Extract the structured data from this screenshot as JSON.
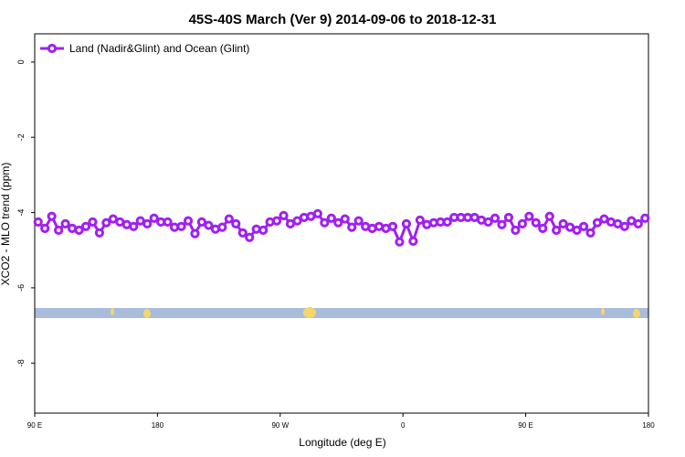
{
  "chart_data": {
    "type": "line",
    "title": "45S-40S March (Ver 9)   2014-09-06 to 2018-12-31",
    "x_label": "Longitude (deg E)",
    "y_label": "XCO2 - MLO trend (ppm)",
    "xlim": [
      90,
      540
    ],
    "ylim": [
      -9.33,
      0.75
    ],
    "xticks": [
      {
        "value": 90,
        "label": "90 E"
      },
      {
        "value": 180,
        "label": "180"
      },
      {
        "value": 270,
        "label": "90 W"
      },
      {
        "value": 360,
        "label": "0"
      },
      {
        "value": 450,
        "label": "90 E"
      },
      {
        "value": 540,
        "label": "180"
      }
    ],
    "yticks": [
      0,
      -2,
      -4,
      -6,
      -8
    ],
    "legend": "top-left",
    "x": [
      92.5,
      97.5,
      102.5,
      107.5,
      112.5,
      117.5,
      122.5,
      127.5,
      132.5,
      137.5,
      142.5,
      147.5,
      152.5,
      157.5,
      162.5,
      167.5,
      172.5,
      177.5,
      182.5,
      187.5,
      192.5,
      197.5,
      202.5,
      207.5,
      212.5,
      217.5,
      222.5,
      227.5,
      232.5,
      237.5,
      242.5,
      247.5,
      252.5,
      257.5,
      262.5,
      267.5,
      272.5,
      277.5,
      282.5,
      287.5,
      292.5,
      297.5,
      302.5,
      307.5,
      312.5,
      317.5,
      322.5,
      327.5,
      332.5,
      337.5,
      342.5,
      347.5,
      352.5,
      357.5,
      362.5,
      367.5,
      372.5,
      377.5,
      382.5,
      387.5,
      392.5,
      397.5,
      402.5,
      407.5,
      412.5,
      417.5,
      422.5,
      427.5,
      432.5,
      437.5,
      442.5,
      447.5,
      452.5,
      457.5,
      462.5,
      467.5,
      472.5,
      477.5,
      482.5,
      487.5,
      492.5,
      497.5,
      502.5,
      507.5,
      512.5,
      517.5,
      522.5,
      527.5,
      532.5,
      537.5
    ],
    "series": [
      {
        "name": "Land (Nadir&Glint) and Ocean (Glint)",
        "color": "#a020f0",
        "values": [
          -4.25,
          -4.42,
          -4.1,
          -4.47,
          -4.3,
          -4.42,
          -4.47,
          -4.37,
          -4.25,
          -4.54,
          -4.27,
          -4.17,
          -4.25,
          -4.32,
          -4.37,
          -4.22,
          -4.3,
          -4.15,
          -4.25,
          -4.25,
          -4.39,
          -4.37,
          -4.22,
          -4.56,
          -4.25,
          -4.34,
          -4.44,
          -4.39,
          -4.17,
          -4.3,
          -4.54,
          -4.66,
          -4.44,
          -4.47,
          -4.25,
          -4.22,
          -4.08,
          -4.3,
          -4.22,
          -4.13,
          -4.1,
          -4.03,
          -4.27,
          -4.15,
          -4.27,
          -4.17,
          -4.39,
          -4.22,
          -4.37,
          -4.42,
          -4.37,
          -4.42,
          -4.37,
          -4.78,
          -4.3,
          -4.76,
          -4.2,
          -4.32,
          -4.27,
          -4.25,
          -4.25,
          -4.13,
          -4.13,
          -4.13,
          -4.13,
          -4.2,
          -4.25,
          -4.15,
          -4.32,
          -4.13,
          -4.47,
          -4.3,
          -4.1,
          -4.27,
          -4.42,
          -4.1,
          -4.47,
          -4.3,
          -4.39,
          -4.47,
          -4.37,
          -4.54,
          -4.27,
          -4.17,
          -4.25,
          -4.3,
          -4.37,
          -4.22,
          -4.3,
          -4.15
        ]
      }
    ]
  }
}
